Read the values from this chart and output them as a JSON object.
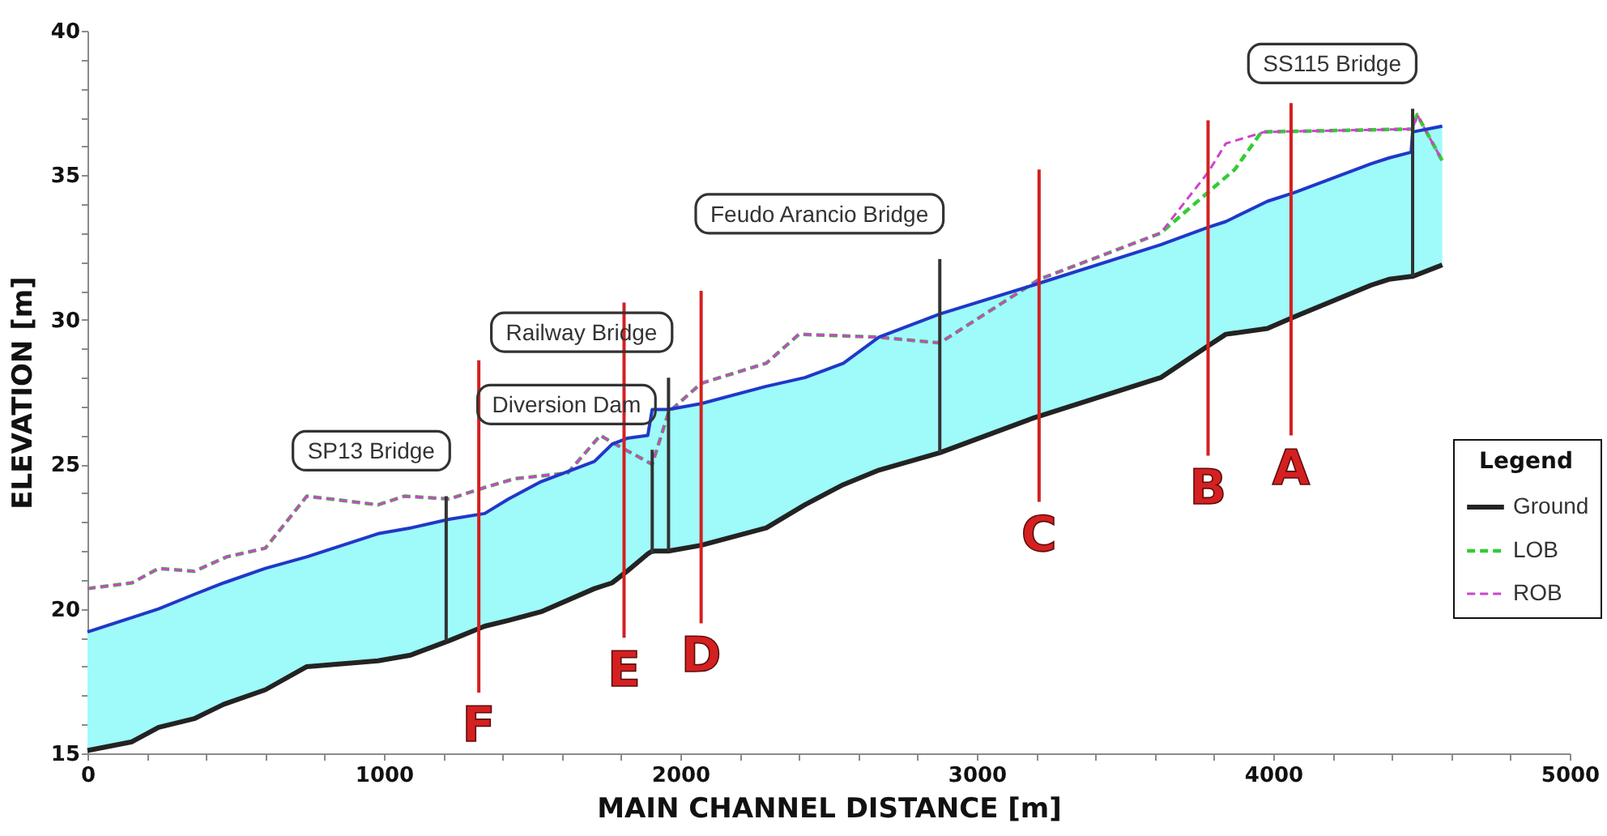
{
  "chart_data": {
    "type": "line",
    "xlabel": "MAIN CHANNEL DISTANCE [m]",
    "ylabel": "ELEVATION [m]",
    "legend_title": "Legend",
    "legend": "right",
    "xlim": [
      0,
      5000
    ],
    "xticks": [
      0,
      {
        "value": 200,
        "label": null
      },
      {
        "value": 400,
        "label": null
      },
      {
        "value": 600,
        "label": null
      },
      {
        "value": 800,
        "label": null
      },
      1000,
      {
        "value": 1200,
        "label": null
      },
      {
        "value": 1400,
        "label": null
      },
      {
        "value": 1600,
        "label": null
      },
      {
        "value": 1800,
        "label": null
      },
      2000,
      {
        "value": 2200,
        "label": null
      },
      {
        "value": 2400,
        "label": null
      },
      {
        "value": 2600,
        "label": null
      },
      {
        "value": 2800,
        "label": null
      },
      3000,
      {
        "value": 3200,
        "label": null
      },
      {
        "value": 3400,
        "label": null
      },
      {
        "value": 3600,
        "label": null
      },
      {
        "value": 3800,
        "label": null
      },
      4000,
      {
        "value": 4200,
        "label": null
      },
      {
        "value": 4400,
        "label": null
      },
      {
        "value": 4600,
        "label": null
      },
      {
        "value": 4800,
        "label": null
      },
      5000
    ],
    "ylim": [
      15,
      40
    ],
    "yticks": [
      15,
      {
        "value": 16,
        "label": null
      },
      {
        "value": 17,
        "label": null
      },
      {
        "value": 18,
        "label": null
      },
      {
        "value": 19,
        "label": null
      },
      20,
      {
        "value": 21,
        "label": null
      },
      {
        "value": 22,
        "label": null
      },
      {
        "value": 23,
        "label": null
      },
      {
        "value": 24,
        "label": null
      },
      25,
      {
        "value": 26,
        "label": null
      },
      {
        "value": 27,
        "label": null
      },
      {
        "value": 28,
        "label": null
      },
      {
        "value": 29,
        "label": null
      },
      30,
      {
        "value": 31,
        "label": null
      },
      {
        "value": 32,
        "label": null
      },
      {
        "value": 33,
        "label": null
      },
      {
        "value": 34,
        "label": null
      },
      35,
      {
        "value": 36,
        "label": null
      },
      {
        "value": 37,
        "label": null
      },
      {
        "value": 38,
        "label": null
      },
      {
        "value": 39,
        "label": null
      },
      40
    ],
    "x": [
      0,
      150,
      240,
      360,
      460,
      600,
      740,
      980,
      1090,
      1220,
      1340,
      1420,
      1530,
      1710,
      1770,
      1820,
      1890,
      1905,
      1960,
      2070,
      2290,
      2420,
      2550,
      2670,
      2875,
      3190,
      3620,
      3780,
      3840,
      3980,
      4070,
      4330,
      4390,
      4465,
      4470,
      4570
    ],
    "series": [
      {
        "color": "#2038c8",
        "values": [
          19.2,
          19.7,
          20.0,
          20.5,
          20.9,
          21.4,
          21.8,
          22.6,
          22.8,
          23.1,
          23.3,
          23.8,
          24.4,
          25.1,
          25.7,
          25.9,
          26.0,
          26.9,
          26.9,
          27.1,
          27.7,
          28.0,
          28.5,
          29.4,
          30.2,
          31.2,
          32.6,
          33.2,
          33.4,
          34.1,
          34.4,
          35.4,
          35.6,
          35.8,
          36.5,
          36.7
        ],
        "lower": [
          15.1,
          15.4,
          15.9,
          16.2,
          16.7,
          17.2,
          18.0,
          18.2,
          18.4,
          18.9,
          19.4,
          19.6,
          19.9,
          20.7,
          20.9,
          21.3,
          21.9,
          22.0,
          22.0,
          22.2,
          22.8,
          23.6,
          24.3,
          24.8,
          25.4,
          26.6,
          28.0,
          29.1,
          29.5,
          29.7,
          30.1,
          31.2,
          31.4,
          31.5,
          31.5,
          31.9
        ],
        "upper": [
          19.2,
          19.7,
          20.0,
          20.5,
          20.9,
          21.4,
          21.8,
          22.6,
          22.8,
          23.1,
          23.3,
          23.8,
          24.4,
          25.1,
          25.7,
          25.9,
          26.0,
          26.9,
          26.9,
          27.1,
          27.7,
          28.0,
          28.5,
          29.4,
          30.2,
          31.2,
          32.6,
          33.2,
          33.4,
          34.1,
          34.4,
          35.4,
          35.6,
          35.8,
          36.5,
          36.7
        ]
      },
      {
        "name": "Ground",
        "color": "#232323",
        "line_style": "solid",
        "values": [
          15.1,
          15.4,
          15.9,
          16.2,
          16.7,
          17.2,
          18.0,
          18.2,
          18.4,
          18.9,
          19.4,
          19.6,
          19.9,
          20.7,
          20.9,
          21.3,
          21.9,
          22.0,
          22.0,
          22.2,
          22.8,
          23.6,
          24.3,
          24.8,
          25.4,
          26.6,
          28.0,
          29.1,
          29.5,
          29.7,
          30.1,
          31.2,
          31.4,
          31.5,
          31.5,
          31.9
        ]
      },
      {
        "name": "LOB",
        "color": "#33cc33",
        "line_style": "dashed",
        "x": [
          0,
          150,
          240,
          360,
          470,
          600,
          740,
          980,
          1070,
          1220,
          1340,
          1440,
          1620,
          1730,
          1780,
          1905,
          1960,
          2070,
          2290,
          2400,
          2670,
          2875,
          3210,
          3620,
          3790,
          3870,
          3960,
          4470,
          4485,
          4570
        ],
        "values": [
          20.7,
          20.9,
          21.4,
          21.3,
          21.8,
          22.1,
          23.9,
          23.6,
          23.9,
          23.8,
          24.2,
          24.5,
          24.7,
          26.0,
          25.7,
          25.0,
          26.8,
          27.8,
          28.5,
          29.5,
          29.4,
          29.2,
          31.4,
          33.0,
          34.5,
          35.2,
          36.5,
          36.6,
          37.1,
          35.5
        ]
      },
      {
        "name": "ROB",
        "color": "#cc44cc",
        "line_style": "dashed",
        "x": [
          0,
          150,
          240,
          360,
          470,
          600,
          740,
          980,
          1070,
          1220,
          1340,
          1440,
          1620,
          1730,
          1780,
          1905,
          1960,
          2070,
          2290,
          2400,
          2670,
          2875,
          3210,
          3620,
          3780,
          3840,
          3970,
          4470,
          4485,
          4570
        ],
        "values": [
          20.7,
          20.9,
          21.4,
          21.3,
          21.8,
          22.1,
          23.9,
          23.6,
          23.9,
          23.8,
          24.2,
          24.5,
          24.7,
          26.0,
          25.7,
          25.0,
          26.8,
          27.8,
          28.5,
          29.5,
          29.4,
          29.2,
          31.4,
          33.0,
          35.1,
          36.1,
          36.5,
          36.6,
          37.1,
          35.5
        ]
      },
      {
        "color": "#333333",
        "x": [
          1210,
          1210
        ],
        "values": [
          18.9,
          23.9
        ]
      },
      {
        "color": "#333333",
        "x": [
          1905,
          1905
        ],
        "values": [
          21.9,
          25.5
        ]
      },
      {
        "color": "#333333",
        "x": [
          1960,
          1960
        ],
        "values": [
          22.0,
          28.0
        ]
      },
      {
        "color": "#333333",
        "x": [
          2875,
          2875
        ],
        "values": [
          25.4,
          32.1
        ]
      },
      {
        "color": "#333333",
        "x": [
          4470,
          4470
        ],
        "values": [
          31.5,
          37.3
        ]
      },
      {
        "color": "#d42020",
        "x": [
          1320,
          1320
        ],
        "values": [
          28.6,
          17.1
        ]
      },
      {
        "color": "#d42020",
        "x": [
          1810,
          1810
        ],
        "values": [
          30.6,
          19.0
        ]
      },
      {
        "color": "#d42020",
        "x": [
          2070,
          2070
        ],
        "values": [
          31.0,
          19.5
        ]
      },
      {
        "color": "#d42020",
        "x": [
          3210,
          3210
        ],
        "values": [
          35.2,
          23.7
        ]
      },
      {
        "color": "#d42020",
        "x": [
          3780,
          3780
        ],
        "values": [
          36.9,
          25.3
        ]
      },
      {
        "color": "#d42020",
        "x": [
          4060,
          4060
        ],
        "values": [
          37.5,
          26.0
        ]
      }
    ],
    "annotations": [
      {
        "text": "SP13 Bridge",
        "x": 1210,
        "y": 23.9
      },
      {
        "text": "Diversion Dam",
        "x": 1905,
        "y": 25.5
      },
      {
        "text": "Railway Bridge",
        "x": 1960,
        "y": 28.0
      },
      {
        "text": "Feudo Arancio Bridge",
        "x": 2875,
        "y": 32.1
      },
      {
        "text": "SS115 Bridge",
        "x": 4470,
        "y": 37.3
      },
      {
        "text": "F",
        "x": 1320,
        "y": 17.1
      },
      {
        "text": "E",
        "x": 1810,
        "y": 19.0
      },
      {
        "text": "D",
        "x": 2070,
        "y": 19.5
      },
      {
        "text": "C",
        "x": 3210,
        "y": 23.7
      },
      {
        "text": "B",
        "x": 3780,
        "y": 25.3
      },
      {
        "text": "A",
        "x": 4060,
        "y": 26.0
      }
    ]
  }
}
